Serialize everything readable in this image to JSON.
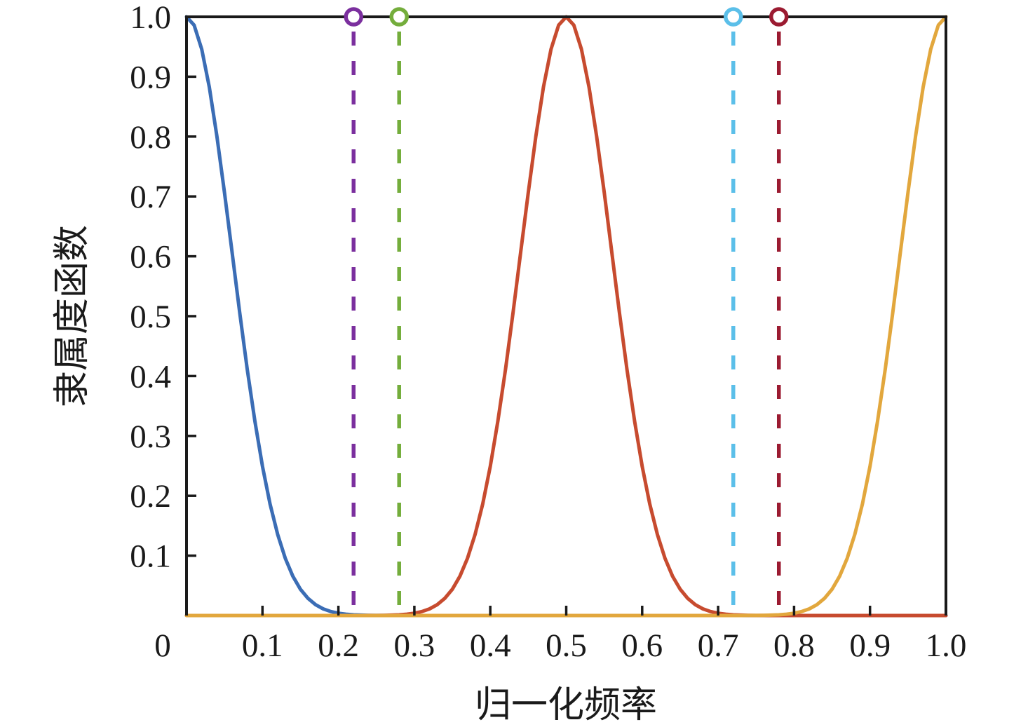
{
  "figure": {
    "background_color": "#ffffff",
    "axis_color": "#1a1a1a"
  },
  "chart_data": {
    "type": "line",
    "title": "",
    "xlabel": "归一化频率",
    "ylabel": "隶属度函数",
    "xlim": [
      0,
      1
    ],
    "ylim": [
      0,
      1
    ],
    "grid": false,
    "legend": "none",
    "x_ticks": {
      "values": [
        0.1,
        0.2,
        0.3,
        0.4,
        0.5,
        0.6,
        0.7,
        0.8,
        0.9,
        1.0
      ],
      "labels": [
        "0.1",
        "0.2",
        "0.3",
        "0.4",
        "0.5",
        "0.6",
        "0.7",
        "0.8",
        "0.9",
        "1.0"
      ]
    },
    "y_ticks": {
      "values": [
        0.1,
        0.2,
        0.3,
        0.4,
        0.5,
        0.6,
        0.7,
        0.8,
        0.9,
        1.0
      ],
      "labels": [
        "0.1",
        "0.2",
        "0.3",
        "0.4",
        "0.5",
        "0.6",
        "0.7",
        "0.8",
        "0.9",
        "1.0"
      ]
    },
    "origin_label": "0",
    "series": [
      {
        "name": "gaussian-low",
        "shape": "gaussian",
        "center": 0.0,
        "sigma": 0.06,
        "amplitude": 1.0,
        "color": "#3B6DB5",
        "line_style": "solid"
      },
      {
        "name": "gaussian-mid",
        "shape": "gaussian",
        "center": 0.5,
        "sigma": 0.06,
        "amplitude": 1.0,
        "color": "#C74B2F",
        "line_style": "solid"
      },
      {
        "name": "gaussian-high",
        "shape": "gaussian",
        "center": 1.0,
        "sigma": 0.06,
        "amplitude": 1.0,
        "color": "#E2A73D",
        "line_style": "solid"
      }
    ],
    "cutoff_markers": [
      {
        "name": "cutoff-0.22",
        "x": 0.22,
        "marker_y": 1.0,
        "color": "#7B2F9E",
        "line_style": "dashed",
        "marker": "open-circle"
      },
      {
        "name": "cutoff-0.28",
        "x": 0.28,
        "marker_y": 1.0,
        "color": "#74AD3C",
        "line_style": "dashed",
        "marker": "open-circle"
      },
      {
        "name": "cutoff-0.72",
        "x": 0.72,
        "marker_y": 1.0,
        "color": "#5BBFE9",
        "line_style": "dashed",
        "marker": "open-circle"
      },
      {
        "name": "cutoff-0.78",
        "x": 0.78,
        "marker_y": 1.0,
        "color": "#9B1B31",
        "line_style": "dashed",
        "marker": "open-circle"
      }
    ]
  }
}
